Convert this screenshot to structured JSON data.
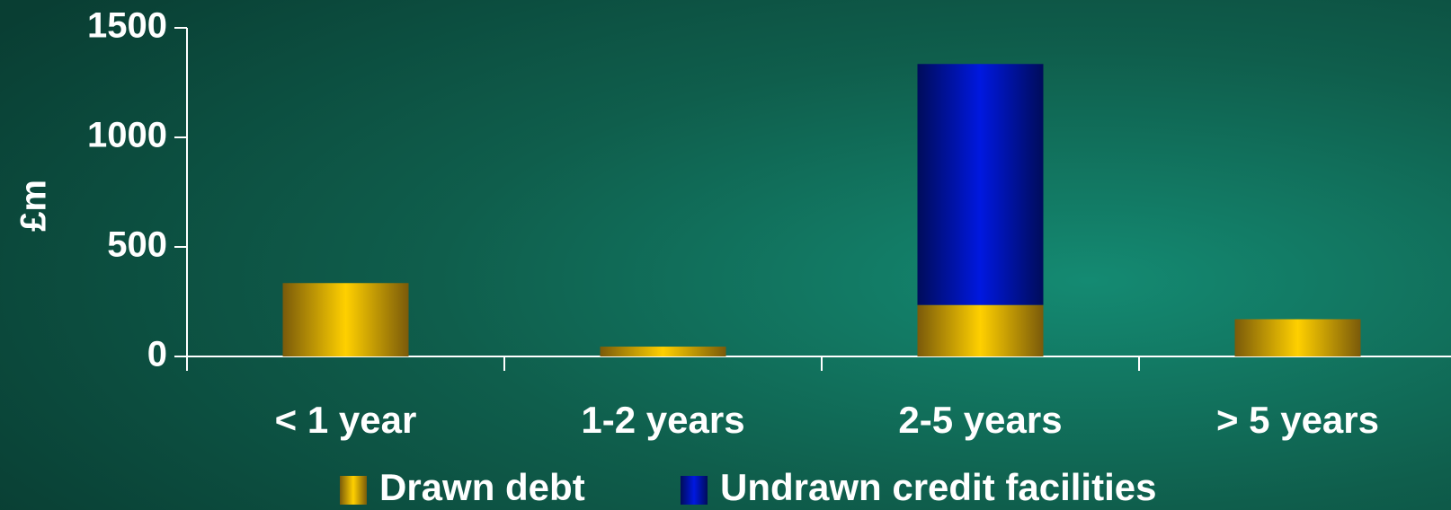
{
  "chart_data": {
    "type": "stacked_bar",
    "y_label": "£m",
    "categories": [
      "< 1 year",
      "1-2 years",
      "2-5 years",
      "> 5 years"
    ],
    "series": [
      {
        "name": "Drawn debt",
        "color": "#f5c400",
        "values": [
          335,
          45,
          235,
          170
        ]
      },
      {
        "name": "Undrawn credit facilities",
        "color": "#0014d8",
        "values": [
          0,
          0,
          1100,
          0
        ]
      }
    ],
    "ylim": [
      0,
      1500
    ],
    "yticks": [
      0,
      500,
      1000,
      1500
    ],
    "legend": "bottom"
  }
}
